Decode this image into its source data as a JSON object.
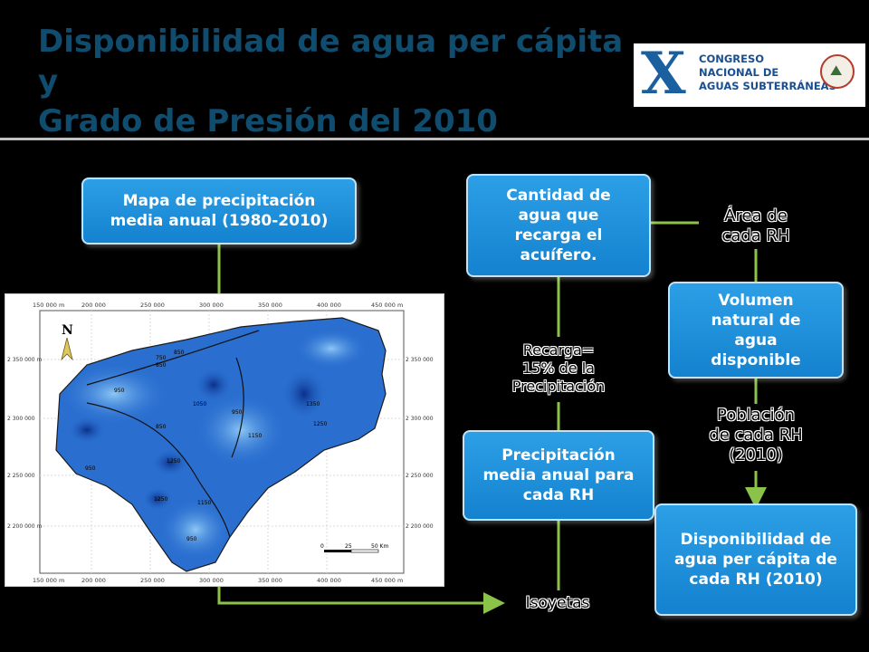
{
  "slide": {
    "title": "Disponibilidad de agua per cápita y\nGrado de Presión del 2010",
    "logo": {
      "mark": "X",
      "text": "CONGRESO\nNACIONAL DE\nAGUAS SUBTERRÁNEAS"
    },
    "colors": {
      "title": "#0f4c6e",
      "box_fill": "#1d8fdc",
      "connector": "#8bc34a",
      "map_fill": "#2a6fd0"
    }
  },
  "boxes": {
    "mapa": "Mapa de precipitación\nmedia anual (1980-2010)",
    "cantidad": "Cantidad de\nagua que\nrecarga el\nacuífero.",
    "volumen": "Volumen\nnatural de\nagua\ndisponible",
    "precip": "Precipitación\nmedia anual para\ncada RH",
    "dispon": "Disponibilidad de\nagua per cápita de\ncada RH (2010)"
  },
  "labels": {
    "area": "Área de\ncada RH",
    "recarga": "Recarga=\n15% de la\nPrecipitación",
    "poblacion": "Población\nde cada RH\n(2010)",
    "isoyetas": "Isoyetas"
  },
  "map": {
    "x_ticks": [
      "150 000 m",
      "200 000",
      "250 000",
      "300 000",
      "350 000",
      "400 000",
      "450 000 m"
    ],
    "y_ticks_left": [
      "2 350 000 m",
      "2 300 000",
      "2 250 000",
      "2 200 000 m"
    ],
    "y_ticks_right": [
      "2 350 000",
      "2 300 000",
      "2 250 000",
      "2 200 000"
    ],
    "north": "N",
    "contours": [
      "850",
      "750",
      "850",
      "950",
      "1050",
      "950",
      "1350",
      "1250",
      "850",
      "1150",
      "950",
      "1250",
      "1250",
      "1150",
      "950"
    ],
    "scale": [
      "0",
      "25",
      "50 Km"
    ]
  }
}
